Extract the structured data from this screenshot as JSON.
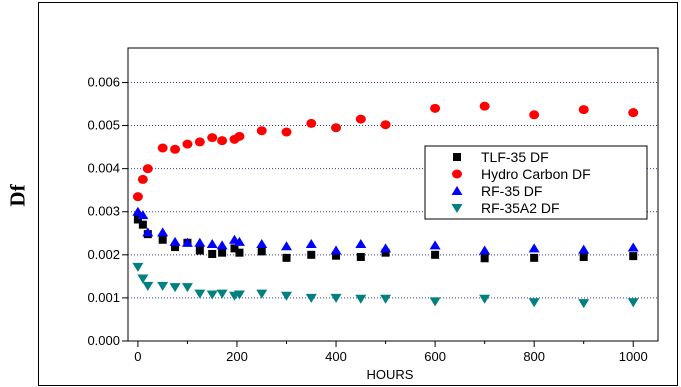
{
  "chart_data": {
    "type": "scatter",
    "title": "",
    "xlabel": "HOURS",
    "ylabel": "Df",
    "xlim": [
      -20,
      1050
    ],
    "ylim": [
      0,
      0.0068
    ],
    "x_ticks": [
      0,
      200,
      400,
      600,
      800,
      1000
    ],
    "x_tick_labels": [
      "0",
      "200",
      "400",
      "600",
      "800",
      "1000"
    ],
    "y_ticks": [
      0,
      0.001,
      0.002,
      0.003,
      0.004,
      0.005,
      0.006
    ],
    "y_tick_labels": [
      "0.000",
      "0.001",
      "0.002",
      "0.003",
      "0.004",
      "0.005",
      "0.006"
    ],
    "grid": "horizontal dotted",
    "legend_position": "right",
    "series": [
      {
        "name": "TLF-35 DF",
        "marker": "square",
        "color": "#000000",
        "x": [
          0,
          10,
          20,
          50,
          75,
          100,
          125,
          150,
          170,
          195,
          205,
          250,
          300,
          350,
          400,
          450,
          500,
          600,
          700,
          800,
          900,
          1000
        ],
        "y": [
          0.00282,
          0.0027,
          0.00248,
          0.00235,
          0.00218,
          0.00228,
          0.0021,
          0.00202,
          0.00205,
          0.00215,
          0.00205,
          0.00208,
          0.00193,
          0.002,
          0.00198,
          0.00195,
          0.00205,
          0.002,
          0.00192,
          0.00193,
          0.00195,
          0.00197
        ]
      },
      {
        "name": "Hydro Carbon DF",
        "marker": "circle",
        "color": "#ff0000",
        "x": [
          0,
          10,
          20,
          50,
          75,
          100,
          125,
          150,
          170,
          195,
          205,
          250,
          300,
          350,
          400,
          450,
          500,
          600,
          700,
          800,
          900,
          1000
        ],
        "y": [
          0.00335,
          0.00375,
          0.004,
          0.00448,
          0.00445,
          0.00457,
          0.00462,
          0.00472,
          0.00465,
          0.00468,
          0.00475,
          0.00488,
          0.00485,
          0.00505,
          0.00495,
          0.00515,
          0.00502,
          0.0054,
          0.00545,
          0.00525,
          0.00537,
          0.0053
        ]
      },
      {
        "name": "RF-35 DF",
        "marker": "triangle-up",
        "color": "#0000ff",
        "x": [
          0,
          10,
          20,
          50,
          75,
          100,
          125,
          150,
          170,
          195,
          205,
          250,
          300,
          350,
          400,
          450,
          500,
          600,
          700,
          800,
          900,
          1000
        ],
        "y": [
          0.003,
          0.00292,
          0.00252,
          0.00252,
          0.0023,
          0.00228,
          0.00228,
          0.00225,
          0.00222,
          0.00235,
          0.0023,
          0.00225,
          0.0022,
          0.00225,
          0.0021,
          0.00225,
          0.00215,
          0.00222,
          0.0021,
          0.00215,
          0.00212,
          0.00217
        ]
      },
      {
        "name": "RF-35A2 DF",
        "marker": "triangle-down",
        "color": "#008080",
        "x": [
          0,
          10,
          20,
          50,
          75,
          100,
          125,
          150,
          170,
          195,
          205,
          250,
          300,
          350,
          400,
          450,
          500,
          600,
          700,
          800,
          900,
          1000
        ],
        "y": [
          0.00172,
          0.00145,
          0.00128,
          0.00128,
          0.00125,
          0.00125,
          0.0011,
          0.00108,
          0.0011,
          0.00105,
          0.00108,
          0.0011,
          0.00105,
          0.001,
          0.001,
          0.00098,
          0.00098,
          0.00092,
          0.00098,
          0.0009,
          0.00088,
          0.0009
        ]
      }
    ]
  }
}
